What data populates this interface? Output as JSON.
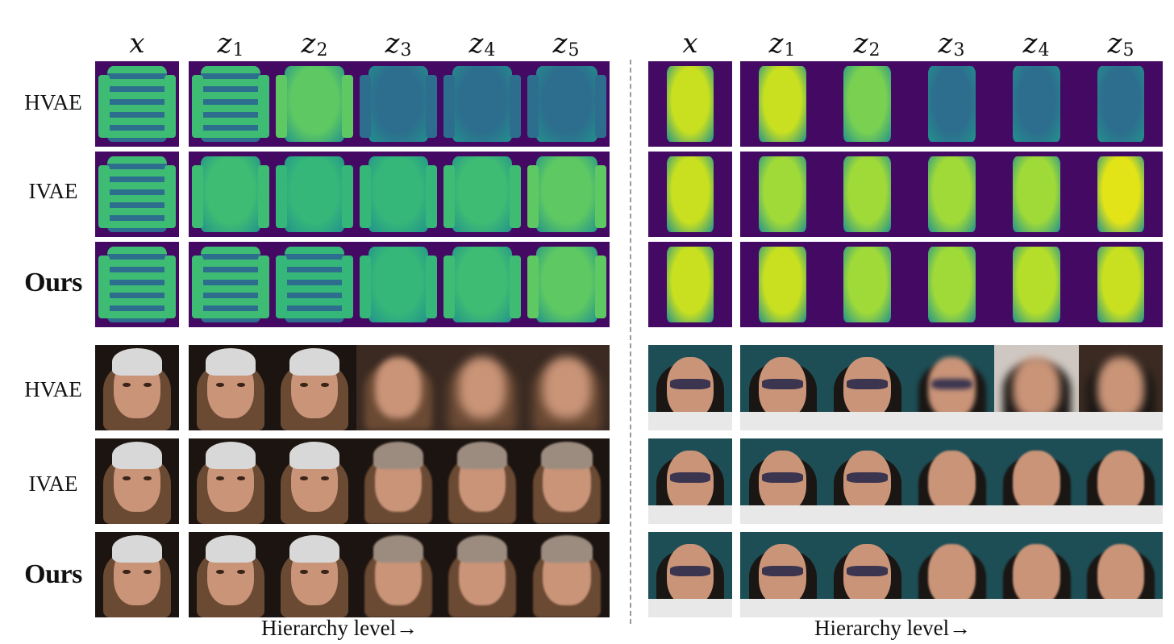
{
  "columns": {
    "input": "x",
    "latent_letter": "z",
    "levels": [
      "1",
      "2",
      "3",
      "4",
      "5"
    ]
  },
  "row_labels": {
    "hvae": "HVAE",
    "ivae": "IVAE",
    "ours": "Ours"
  },
  "axis": {
    "hierarchy_left": "Hierarchy level→",
    "hierarchy_right": "Hierarchy level→"
  },
  "colors": {
    "fashion_bg": "#440a63",
    "viridis_blue": "#2d6e8e",
    "viridis_teal": "#21918c",
    "viridis_green": "#3fbc73",
    "viridis_yellow": "#c8e020",
    "face_dark_bg": "#1c1410",
    "face_teal_bg": "#1d4d55",
    "skin": "#c99478",
    "hat": "#d8d8d8",
    "hair": "#6b4a34"
  },
  "icons": [
    "garment-thumbnail-icon",
    "face-thumbnail-icon"
  ]
}
